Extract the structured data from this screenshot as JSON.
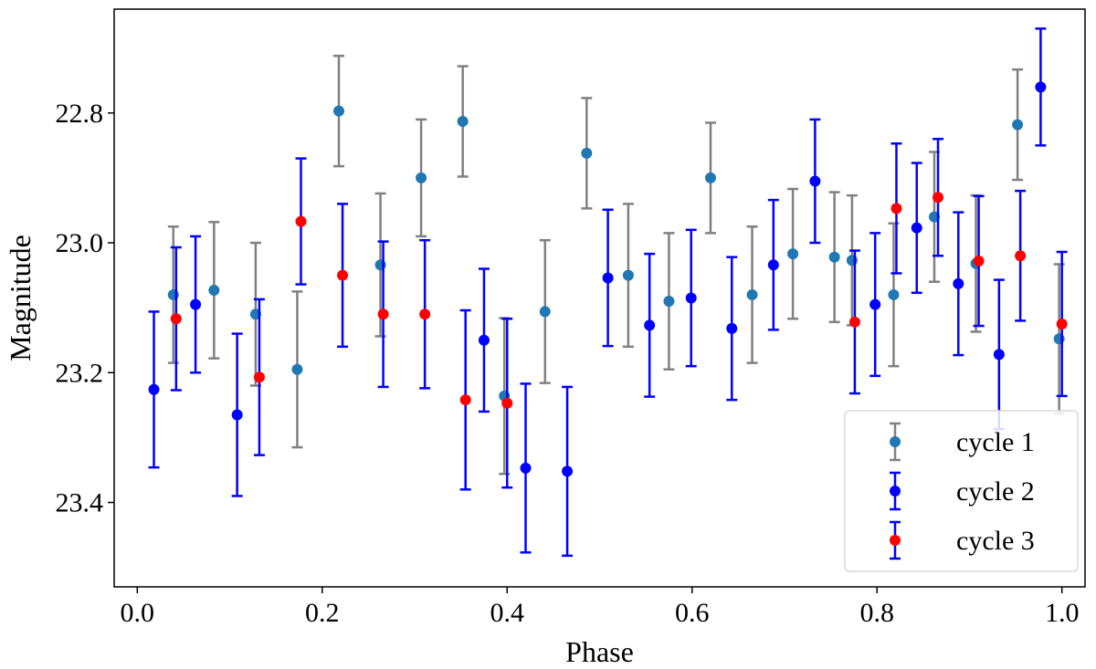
{
  "chart_data": {
    "type": "scatter",
    "title": "",
    "xlabel": "Phase",
    "ylabel": "Magnitude",
    "xlim": [
      -0.025,
      1.025
    ],
    "ylim": [
      22.64,
      23.53
    ],
    "y_inverted": true,
    "x_ticks": [
      "0.0",
      "0.2",
      "0.4",
      "0.6",
      "0.8",
      "1.0"
    ],
    "x_tick_values": [
      0.0,
      0.2,
      0.4,
      0.6,
      0.8,
      1.0
    ],
    "y_ticks": [
      "22.8",
      "23.0",
      "23.2",
      "23.4"
    ],
    "y_tick_values": [
      22.8,
      23.0,
      23.2,
      23.4
    ],
    "grid": false,
    "legend_position": "bottom-right",
    "series": [
      {
        "name": "cycle 1",
        "marker_color": "#1f77b4",
        "errorbar_color": "#808080",
        "points": [
          {
            "x": 0.039,
            "y": 23.08,
            "err": 0.105
          },
          {
            "x": 0.083,
            "y": 23.073,
            "err": 0.105
          },
          {
            "x": 0.128,
            "y": 23.11,
            "err": 0.11
          },
          {
            "x": 0.173,
            "y": 23.195,
            "err": 0.12
          },
          {
            "x": 0.218,
            "y": 22.797,
            "err": 0.085
          },
          {
            "x": 0.263,
            "y": 23.034,
            "err": 0.11
          },
          {
            "x": 0.307,
            "y": 22.9,
            "err": 0.09
          },
          {
            "x": 0.352,
            "y": 22.813,
            "err": 0.085
          },
          {
            "x": 0.397,
            "y": 23.236,
            "err": 0.12
          },
          {
            "x": 0.441,
            "y": 23.106,
            "err": 0.11
          },
          {
            "x": 0.486,
            "y": 22.862,
            "err": 0.085
          },
          {
            "x": 0.531,
            "y": 23.05,
            "err": 0.11
          },
          {
            "x": 0.575,
            "y": 23.09,
            "err": 0.105
          },
          {
            "x": 0.62,
            "y": 22.9,
            "err": 0.085
          },
          {
            "x": 0.665,
            "y": 23.08,
            "err": 0.105
          },
          {
            "x": 0.709,
            "y": 23.017,
            "err": 0.1
          },
          {
            "x": 0.754,
            "y": 23.022,
            "err": 0.1
          },
          {
            "x": 0.773,
            "y": 23.027,
            "err": 0.1
          },
          {
            "x": 0.818,
            "y": 23.08,
            "err": 0.11
          },
          {
            "x": 0.862,
            "y": 22.96,
            "err": 0.1
          },
          {
            "x": 0.907,
            "y": 23.032,
            "err": 0.105
          },
          {
            "x": 0.952,
            "y": 22.818,
            "err": 0.085
          },
          {
            "x": 0.997,
            "y": 23.148,
            "err": 0.115
          }
        ]
      },
      {
        "name": "cycle 2",
        "marker_color": "#0000ff",
        "errorbar_color": "#0000ff",
        "points": [
          {
            "x": 0.018,
            "y": 23.226,
            "err": 0.12
          },
          {
            "x": 0.063,
            "y": 23.095,
            "err": 0.105
          },
          {
            "x": 0.108,
            "y": 23.265,
            "err": 0.125
          },
          {
            "x": 0.375,
            "y": 23.15,
            "err": 0.11
          },
          {
            "x": 0.42,
            "y": 23.347,
            "err": 0.13
          },
          {
            "x": 0.465,
            "y": 23.352,
            "err": 0.13
          },
          {
            "x": 0.509,
            "y": 23.054,
            "err": 0.105
          },
          {
            "x": 0.554,
            "y": 23.127,
            "err": 0.11
          },
          {
            "x": 0.599,
            "y": 23.085,
            "err": 0.105
          },
          {
            "x": 0.643,
            "y": 23.132,
            "err": 0.11
          },
          {
            "x": 0.688,
            "y": 23.034,
            "err": 0.1
          },
          {
            "x": 0.733,
            "y": 22.905,
            "err": 0.095
          },
          {
            "x": 0.798,
            "y": 23.095,
            "err": 0.11
          },
          {
            "x": 0.843,
            "y": 22.977,
            "err": 0.1
          },
          {
            "x": 0.888,
            "y": 23.063,
            "err": 0.11
          },
          {
            "x": 0.932,
            "y": 23.172,
            "err": 0.115
          },
          {
            "x": 0.977,
            "y": 22.76,
            "err": 0.09
          }
        ]
      },
      {
        "name": "cycle 3",
        "marker_color": "#ff0000",
        "errorbar_color": "#0000ff",
        "points": [
          {
            "x": 0.042,
            "y": 23.117,
            "err": 0.11
          },
          {
            "x": 0.132,
            "y": 23.207,
            "err": 0.12
          },
          {
            "x": 0.177,
            "y": 22.967,
            "err": 0.097
          },
          {
            "x": 0.222,
            "y": 23.05,
            "err": 0.11
          },
          {
            "x": 0.266,
            "y": 23.11,
            "err": 0.112
          },
          {
            "x": 0.311,
            "y": 23.11,
            "err": 0.114
          },
          {
            "x": 0.355,
            "y": 23.242,
            "err": 0.138
          },
          {
            "x": 0.4,
            "y": 23.247,
            "err": 0.13
          },
          {
            "x": 0.776,
            "y": 23.122,
            "err": 0.11
          },
          {
            "x": 0.821,
            "y": 22.947,
            "err": 0.1
          },
          {
            "x": 0.866,
            "y": 22.93,
            "err": 0.09
          },
          {
            "x": 0.91,
            "y": 23.028,
            "err": 0.1
          },
          {
            "x": 0.955,
            "y": 23.02,
            "err": 0.1
          },
          {
            "x": 1.0,
            "y": 23.125,
            "err": 0.111
          }
        ]
      }
    ]
  }
}
